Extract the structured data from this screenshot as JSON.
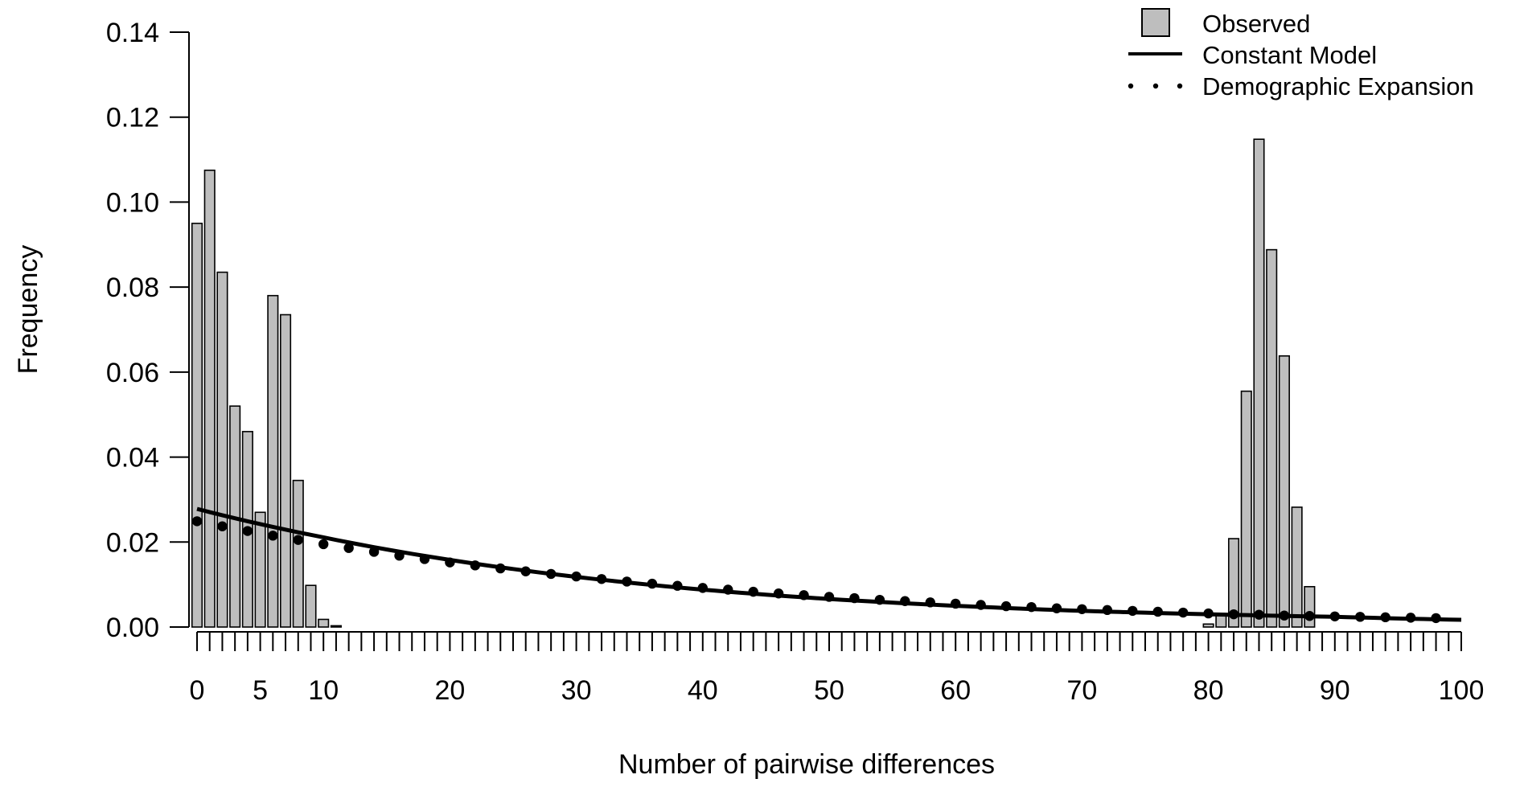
{
  "chart_data": {
    "type": "bar",
    "title": "",
    "xlabel": "Number of pairwise differences",
    "ylabel": "Frequency",
    "xlim": [
      0,
      100
    ],
    "ylim": [
      0,
      0.14
    ],
    "x_ticks": [
      0,
      5,
      10,
      20,
      30,
      40,
      50,
      60,
      70,
      80,
      90,
      100
    ],
    "y_ticks": [
      "0.00",
      "0.02",
      "0.04",
      "0.06",
      "0.08",
      "0.10",
      "0.12",
      "0.14"
    ],
    "grid": false,
    "legend_position": "top-right",
    "legend": {
      "observed": "Observed",
      "constant": "Constant Model",
      "expansion": "Demographic Expansion"
    },
    "colors": {
      "bar_fill": "#bebebe",
      "line": "#000000"
    },
    "observed": {
      "name": "Observed",
      "x": [
        0,
        1,
        2,
        3,
        4,
        5,
        6,
        7,
        8,
        9,
        10,
        11,
        80,
        81,
        82,
        83,
        84,
        85,
        86,
        87,
        88
      ],
      "values": [
        0.095,
        0.1075,
        0.0835,
        0.052,
        0.046,
        0.027,
        0.078,
        0.0735,
        0.0345,
        0.0098,
        0.0018,
        0.0003,
        0.0007,
        0.003,
        0.0208,
        0.0555,
        0.1148,
        0.0888,
        0.0638,
        0.0282,
        0.0095
      ]
    },
    "constant_model": {
      "name": "Constant Model",
      "x": [
        0,
        10,
        20,
        30,
        40,
        50,
        60,
        70,
        80,
        90,
        100
      ],
      "values": [
        0.0278,
        0.0211,
        0.0158,
        0.0118,
        0.0088,
        0.0066,
        0.005,
        0.0038,
        0.003,
        0.0024,
        0.0017
      ]
    },
    "demographic_expansion": {
      "name": "Demographic Expansion",
      "x": [
        0,
        2,
        4,
        6,
        8,
        10,
        12,
        14,
        16,
        18,
        20,
        22,
        24,
        26,
        28,
        30,
        32,
        34,
        36,
        38,
        40,
        42,
        44,
        46,
        48,
        50,
        52,
        54,
        56,
        58,
        60,
        62,
        64,
        66,
        68,
        70,
        72,
        74,
        76,
        78,
        80,
        82,
        84,
        86,
        88,
        90,
        92,
        94,
        96,
        98
      ],
      "values": [
        0.0249,
        0.0237,
        0.0226,
        0.0215,
        0.0205,
        0.0195,
        0.0186,
        0.0177,
        0.0168,
        0.016,
        0.0152,
        0.0145,
        0.0138,
        0.0131,
        0.0125,
        0.0119,
        0.0113,
        0.0107,
        0.0102,
        0.0097,
        0.0092,
        0.0088,
        0.0083,
        0.0079,
        0.0075,
        0.0071,
        0.0068,
        0.0064,
        0.0061,
        0.0058,
        0.0055,
        0.0052,
        0.0049,
        0.0047,
        0.0044,
        0.0042,
        0.004,
        0.0038,
        0.0036,
        0.0034,
        0.0032,
        0.003,
        0.0029,
        0.0027,
        0.0026,
        0.0025,
        0.0024,
        0.0023,
        0.0022,
        0.0021
      ]
    }
  }
}
